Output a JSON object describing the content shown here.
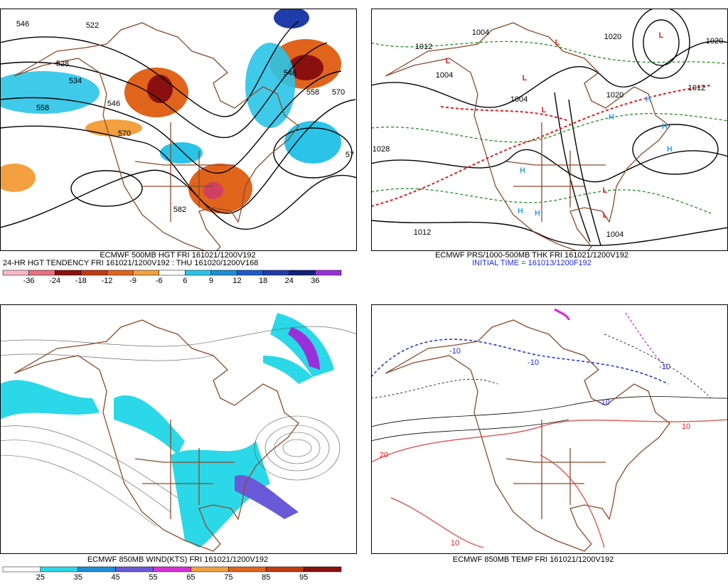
{
  "panels": [
    {
      "caption": [
        "ECMWF 500MB HGT FRI 161021/1200V192",
        "24-HR HGT TENDENCY FRI 161021/1200V192 : THU 161020/1200V168"
      ],
      "colorbar": [
        "-36",
        "-24",
        "-18",
        "-12",
        "-9",
        "-6",
        "6",
        "9",
        "12",
        "18",
        "24",
        "36"
      ],
      "contour_labels": [
        "546",
        "522",
        "528",
        "534",
        "558",
        "546",
        "570",
        "582",
        "546",
        "558",
        "570",
        "57"
      ]
    },
    {
      "caption": [
        "ECMWF PRS/1000-500MB THK FRI 161021/1200V192",
        "INITIAL TIME = 161013/1200F192"
      ],
      "contour_labels": [
        "1004",
        "1012",
        "1004",
        "1004",
        "1020",
        "1028",
        "1012",
        "1020",
        "1012",
        "1004",
        "1020"
      ],
      "symbols": [
        "L",
        "L",
        "L",
        "L",
        "L",
        "H",
        "H",
        "H",
        "H",
        "H",
        "H",
        "H",
        "L",
        "L"
      ]
    },
    {
      "caption": [
        "ECMWF 850MB WIND(KTS) FRI 161021/1200V192"
      ],
      "colorbar": [
        "25",
        "35",
        "45",
        "55",
        "65",
        "75",
        "85",
        "95"
      ]
    },
    {
      "caption": [
        "ECMWF 850MB TEMP FRI 161021/1200V192"
      ],
      "contour_labels": [
        "-10",
        "-10",
        "-10",
        "10",
        "-10",
        "20",
        "10"
      ]
    }
  ]
}
